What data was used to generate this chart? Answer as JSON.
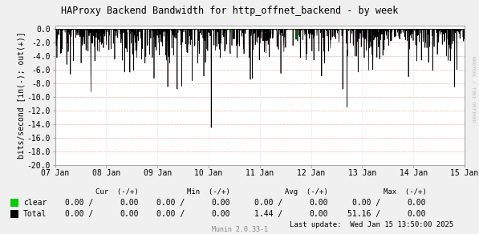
{
  "title": "HAProxy Backend Bandwidth for http_offnet_backend - by week",
  "ylabel": "bits/second [in(-); out(+)]",
  "bg_color": "#f0f0f0",
  "plot_bg_color": "#ffffff",
  "ylim": [
    -20.0,
    0.5
  ],
  "yticks": [
    0.0,
    -2.0,
    -4.0,
    -6.0,
    -8.0,
    -10.0,
    -12.0,
    -14.0,
    -16.0,
    -18.0,
    -20.0
  ],
  "yticklabels": [
    "0.0",
    "-2.0",
    "-4.0",
    "-6.0",
    "-8.0",
    "-10.0",
    "-12.0",
    "-14.0",
    "-16.0",
    "-18.0",
    "-20.0"
  ],
  "xticklabels": [
    "07 Jan",
    "08 Jan",
    "09 Jan",
    "10 Jan",
    "11 Jan",
    "12 Jan",
    "13 Jan",
    "14 Jan",
    "15 Jan"
  ],
  "watermark": "RRDTOOL / TOBI OETIKER",
  "munin_version": "Munin 2.0.33-1",
  "clear_color": "#00cc00",
  "total_color": "#000000",
  "red_grid_color": "#ffb0b0",
  "blue_grid_color": "#d0d0ff",
  "table_rows": [
    {
      "name": "clear",
      "color": "#00cc00",
      "cur_n": "0.00",
      "cur_p": "0.00",
      "min_n": "0.00",
      "min_p": "0.00",
      "avg_n": "0.00",
      "avg_p": "0.00",
      "max_n": "0.00",
      "max_p": "0.00"
    },
    {
      "name": "Total",
      "color": "#000000",
      "cur_n": "0.00",
      "cur_p": "0.00",
      "min_n": "0.00",
      "min_p": "0.00",
      "avg_n": "1.44",
      "avg_p": "0.00",
      "max_n": "51.16",
      "max_p": "0.00"
    }
  ],
  "last_update": "Last update:  Wed Jan 15 13:50:00 2025"
}
